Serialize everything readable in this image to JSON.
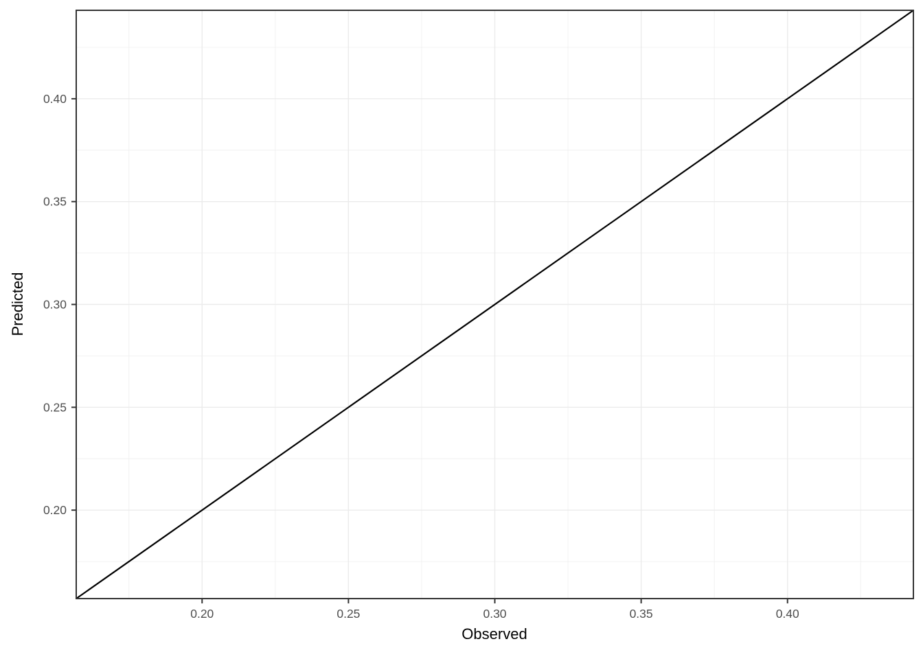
{
  "chart_data": {
    "type": "line",
    "title": "",
    "xlabel": "Observed",
    "ylabel": "Predicted",
    "xlim": [
      0.157,
      0.443
    ],
    "ylim": [
      0.157,
      0.443
    ],
    "x_major_ticks": [
      0.2,
      0.25,
      0.3,
      0.35,
      0.4
    ],
    "y_major_ticks": [
      0.2,
      0.25,
      0.3,
      0.35,
      0.4
    ],
    "x_minor_gridlines": [
      0.175,
      0.225,
      0.275,
      0.325,
      0.375,
      0.425
    ],
    "y_minor_gridlines": [
      0.175,
      0.225,
      0.275,
      0.325,
      0.375,
      0.425
    ],
    "tick_label_decimals": 2,
    "grid": true,
    "legend": "none",
    "series": [
      {
        "name": "identity-line",
        "points": [
          [
            0.157,
            0.157
          ],
          [
            0.443,
            0.443
          ]
        ],
        "description": "y = x reference line from bottom-left to top-right panel corner"
      }
    ],
    "colors": {
      "background": "#FFFFFF",
      "grid_major": "#EBEBEB",
      "grid_minor": "#F0F0F0",
      "panel_border": "#333333",
      "tick_mark": "#333333",
      "axis_text": "#4D4D4D",
      "axis_title": "#000000",
      "line": "#000000"
    }
  }
}
